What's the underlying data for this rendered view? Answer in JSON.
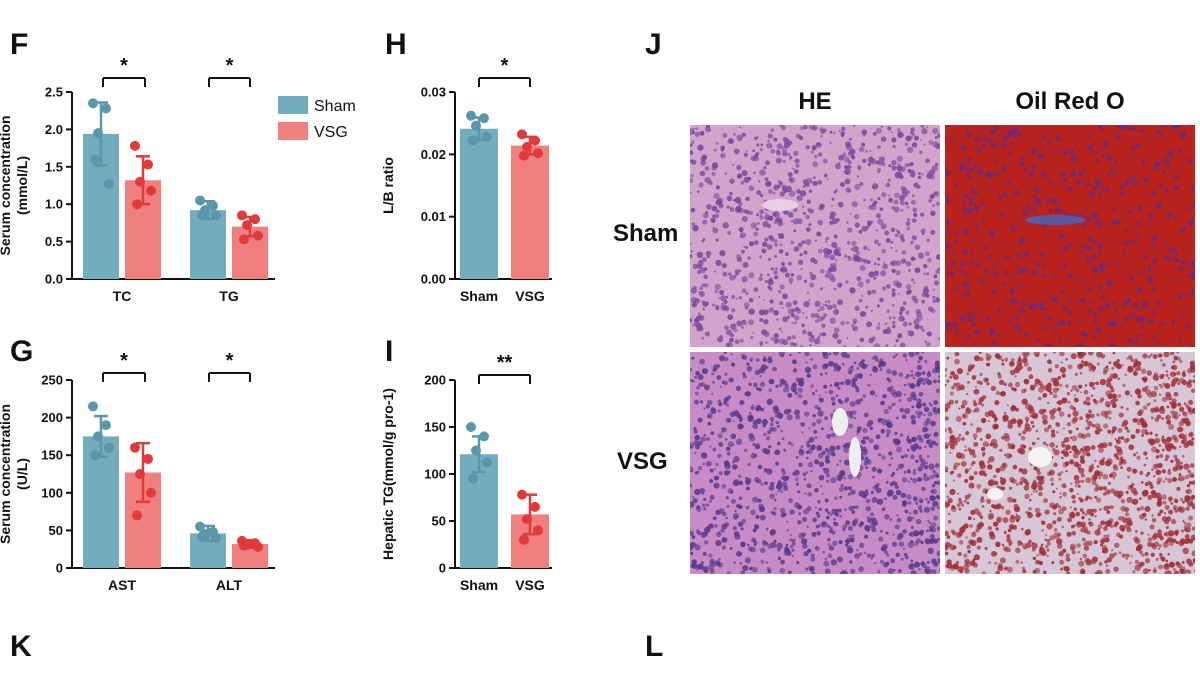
{
  "panel_letters": {
    "F": "F",
    "G": "G",
    "H": "H",
    "I": "I",
    "J": "J",
    "K": "K",
    "L": "L"
  },
  "colors": {
    "sham": "#73adbd",
    "vsg": "#f08080",
    "sham_dot": "#5a97ad",
    "vsg_dot": "#e03a3a",
    "he": "#c98fc4",
    "oro": "#b0201c"
  },
  "chart_data": [
    {
      "id": "F",
      "type": "bar",
      "ylabel": "Serum concentration\n(mmol/L)",
      "ylim": [
        0,
        2.5
      ],
      "yticks": [
        "0.0",
        "0.5",
        "1.0",
        "1.5",
        "2.0",
        "2.5"
      ],
      "categories": [
        "TC",
        "TG"
      ],
      "series": [
        {
          "name": "Sham",
          "values": [
            1.94,
            0.92
          ],
          "err": [
            0.42,
            0.12
          ],
          "points": [
            [
              2.35,
              2.28,
              1.95,
              1.27,
              1.6
            ],
            [
              1.05,
              0.98,
              0.92,
              0.85,
              0.86
            ]
          ]
        },
        {
          "name": "VSG",
          "values": [
            1.32,
            0.7
          ],
          "err": [
            0.32,
            0.13
          ],
          "points": [
            [
              1.78,
              1.53,
              1.3,
              1.18,
              1.0
            ],
            [
              0.85,
              0.8,
              0.72,
              0.58,
              0.53
            ]
          ]
        }
      ],
      "significance": [
        {
          "label": "*"
        },
        {
          "label": "*"
        }
      ],
      "legend": [
        "Sham",
        "VSG"
      ],
      "legend_position": "top-right"
    },
    {
      "id": "G",
      "type": "bar",
      "ylabel": "Serum concentration\n(U/L)",
      "ylim": [
        0,
        250
      ],
      "yticks": [
        "0",
        "50",
        "100",
        "150",
        "200",
        "250"
      ],
      "categories": [
        "AST",
        "ALT"
      ],
      "series": [
        {
          "name": "Sham",
          "values": [
            175,
            46
          ],
          "err": [
            27,
            10
          ],
          "points": [
            [
              215,
              190,
              175,
              160,
              150
            ],
            [
              55,
              48,
              45,
              40,
              42
            ]
          ]
        },
        {
          "name": "VSG",
          "values": [
            127,
            32
          ],
          "err": [
            39,
            5
          ],
          "points": [
            [
              160,
              145,
              125,
              100,
              70
            ],
            [
              36,
              33,
              31,
              28,
              30
            ]
          ]
        }
      ],
      "significance": [
        {
          "label": "*"
        },
        {
          "label": "*"
        }
      ]
    },
    {
      "id": "H",
      "type": "bar",
      "ylabel": "L/B ratio",
      "ylim": [
        0,
        0.03
      ],
      "yticks": [
        "0.00",
        "0.01",
        "0.02",
        "0.03"
      ],
      "categories": [
        "Sham",
        "VSG"
      ],
      "values": [
        0.0241,
        0.0214
      ],
      "err": [
        0.0018,
        0.0014
      ],
      "points": [
        [
          0.0262,
          0.0258,
          0.0246,
          0.0228,
          0.0222
        ],
        [
          0.0232,
          0.0222,
          0.0212,
          0.0202,
          0.0198
        ]
      ],
      "significance": [
        {
          "label": "*"
        }
      ]
    },
    {
      "id": "I",
      "type": "bar",
      "ylabel": "Hepatic TG(mmol/g pro-1)",
      "ylim": [
        0,
        200
      ],
      "yticks": [
        "0",
        "50",
        "100",
        "150",
        "200"
      ],
      "categories": [
        "Sham",
        "VSG"
      ],
      "values": [
        121,
        57
      ],
      "err": [
        19,
        21
      ],
      "points": [
        [
          150,
          140,
          125,
          112,
          95
        ],
        [
          78,
          65,
          52,
          40,
          30
        ]
      ],
      "significance": [
        {
          "label": "**"
        }
      ]
    }
  ],
  "histology": {
    "columns": [
      "HE",
      "Oil Red O"
    ],
    "rows": [
      "Sham",
      "VSG"
    ]
  }
}
